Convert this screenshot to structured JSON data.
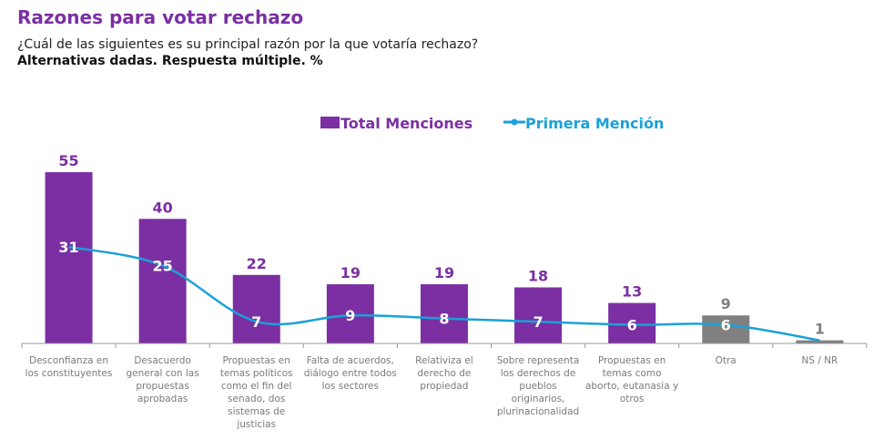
{
  "header": {
    "title": "Razones para votar rechazo",
    "question": "¿Cuál de las siguientes es su principal razón por la que votaría rechazo?",
    "note": "Alternativas dadas. Respuesta múltiple. %"
  },
  "chart_data": {
    "type": "bar",
    "legend_position": "top-center",
    "grid": false,
    "ylim": [
      0,
      60
    ],
    "categories": [
      "Desconfianza en los constituyentes",
      "Desacuerdo general con las propuestas aprobadas",
      "Propuestas en temas políticos como el fin del senado, dos sistemas de justicias",
      "Falta de acuerdos, diálogo entre todos los sectores",
      "Relativiza el derecho de propiedad",
      "Sobre representa los derechos de pueblos originarios, plurinacionalidad",
      "Propuestas en temas como aborto, eutanasia y otros",
      "Otra",
      "NS / NR"
    ],
    "series": [
      {
        "name": "Total Menciones",
        "type": "bar",
        "color": "#7b2fa3",
        "values": [
          55,
          40,
          22,
          19,
          19,
          18,
          13,
          9,
          1
        ],
        "labels": [
          "55",
          "40",
          "22",
          "19",
          "19",
          "18",
          "13",
          "9",
          "1"
        ],
        "bar_colors": [
          "#7b2fa3",
          "#7b2fa3",
          "#7b2fa3",
          "#7b2fa3",
          "#7b2fa3",
          "#7b2fa3",
          "#7b2fa3",
          "#808080",
          "#808080"
        ],
        "label_colors": [
          "#7b2fa3",
          "#7b2fa3",
          "#7b2fa3",
          "#7b2fa3",
          "#7b2fa3",
          "#7b2fa3",
          "#7b2fa3",
          "#808080",
          "#808080"
        ]
      },
      {
        "name": "Primera Mención",
        "type": "line",
        "color": "#1ba1d8",
        "values": [
          31,
          25,
          7,
          9,
          8,
          7,
          6,
          6,
          1
        ],
        "labels": [
          "31",
          "25",
          "7",
          "9",
          "8",
          "7",
          "6",
          "6",
          ""
        ]
      }
    ]
  }
}
